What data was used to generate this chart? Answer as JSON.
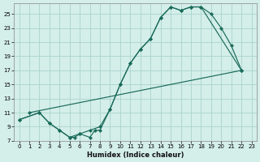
{
  "xlabel": "Humidex (Indice chaleur)",
  "bg_color": "#d4eeea",
  "grid_color": "#aad4cc",
  "line_color": "#1a6b5a",
  "xlim": [
    -0.5,
    23.5
  ],
  "ylim": [
    7,
    26.5
  ],
  "xticks": [
    0,
    1,
    2,
    3,
    4,
    5,
    6,
    7,
    8,
    9,
    10,
    11,
    12,
    13,
    14,
    15,
    16,
    17,
    18,
    19,
    20,
    21,
    22,
    23
  ],
  "yticks": [
    7,
    9,
    11,
    13,
    15,
    17,
    19,
    21,
    23,
    25
  ],
  "curve1_x": [
    0,
    2,
    3,
    4,
    5,
    6,
    7,
    8,
    9,
    10,
    11,
    12,
    13,
    14,
    15,
    16,
    17,
    18,
    19,
    20,
    21,
    22
  ],
  "curve1_y": [
    10,
    11,
    9.5,
    8.5,
    7.5,
    8.0,
    8.5,
    9.0,
    11.5,
    15.0,
    18.0,
    20.0,
    21.5,
    24.5,
    26.0,
    25.5,
    26.0,
    26.0,
    25.0,
    23.0,
    20.5,
    17.0
  ],
  "curve2_x": [
    0,
    2,
    3,
    4,
    5,
    5.5,
    6,
    7,
    7.5,
    8,
    9,
    10,
    11,
    12,
    13,
    14,
    15,
    16,
    17,
    18,
    22
  ],
  "curve2_y": [
    10,
    11,
    9.5,
    8.5,
    7.5,
    7.5,
    8.0,
    7.5,
    8.5,
    8.5,
    11.5,
    15.0,
    18.0,
    20.0,
    21.5,
    24.5,
    26.0,
    25.5,
    26.0,
    26.0,
    17.0
  ],
  "curve3_x": [
    1,
    22
  ],
  "curve3_y": [
    11,
    17
  ]
}
